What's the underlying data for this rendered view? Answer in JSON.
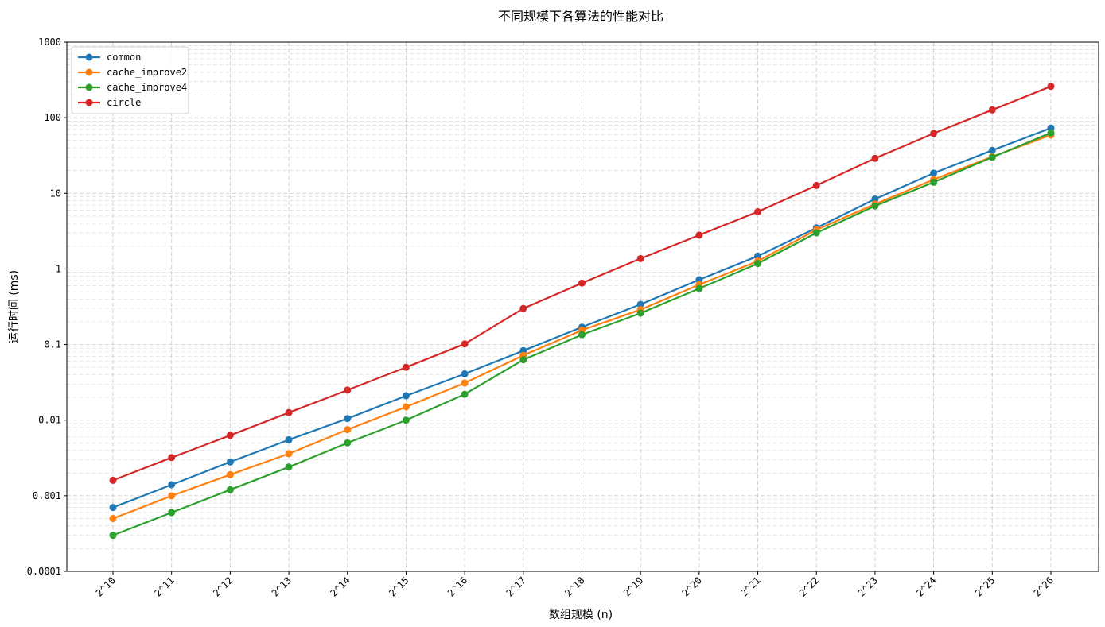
{
  "chart_data": {
    "type": "line",
    "title": "不同规模下各算法的性能对比",
    "xlabel": "数组规模 (n)",
    "ylabel": "运行时间 (ms)",
    "yscale": "log",
    "ylim": [
      0.0001,
      1000
    ],
    "y_ticks": [
      "0.0001",
      "0.001",
      "0.01",
      "0.1",
      "1",
      "10",
      "100",
      "1000"
    ],
    "categories": [
      "2^10",
      "2^11",
      "2^12",
      "2^13",
      "2^14",
      "2^15",
      "2^16",
      "2^17",
      "2^18",
      "2^19",
      "2^20",
      "2^21",
      "2^22",
      "2^23",
      "2^24",
      "2^25",
      "2^26"
    ],
    "grid": true,
    "legend_position": "top-left",
    "series": [
      {
        "name": "common",
        "color": "#1f77b4",
        "values": [
          0.0007,
          0.0014,
          0.0028,
          0.0055,
          0.0105,
          0.021,
          0.041,
          0.083,
          0.17,
          0.34,
          0.72,
          1.48,
          3.5,
          8.4,
          18.5,
          37,
          73
        ]
      },
      {
        "name": "cache_improve2",
        "color": "#ff7f0e",
        "values": [
          0.0005,
          0.001,
          0.0019,
          0.0036,
          0.0075,
          0.015,
          0.031,
          0.072,
          0.155,
          0.29,
          0.62,
          1.27,
          3.3,
          7.2,
          15.2,
          30.5,
          59
        ]
      },
      {
        "name": "cache_improve4",
        "color": "#2ca02c",
        "values": [
          0.0003,
          0.0006,
          0.0012,
          0.0024,
          0.005,
          0.01,
          0.022,
          0.063,
          0.135,
          0.26,
          0.55,
          1.18,
          3.0,
          6.8,
          14.0,
          30,
          63
        ]
      },
      {
        "name": "circle",
        "color": "#d62728",
        "values": [
          0.0016,
          0.0032,
          0.0063,
          0.0126,
          0.025,
          0.05,
          0.102,
          0.3,
          0.65,
          1.37,
          2.8,
          5.7,
          12.7,
          29,
          62,
          127,
          260
        ]
      }
    ]
  }
}
